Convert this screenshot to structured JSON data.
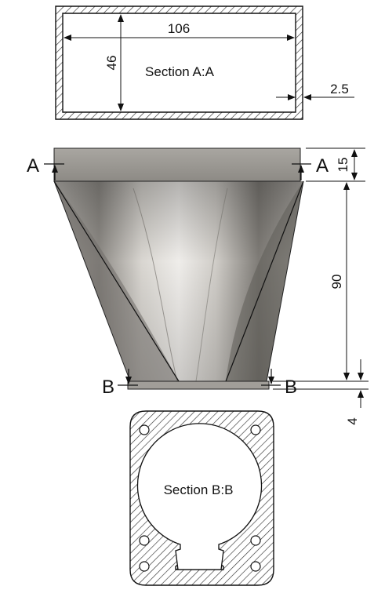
{
  "section_aa": {
    "title": "Section A:A",
    "width_dim": "106",
    "height_dim": "46",
    "wall_dim": "2.5"
  },
  "elevation": {
    "cut_a_label": "A",
    "cut_b_label": "B",
    "flange_height_dim": "15",
    "body_height_dim": "90",
    "base_plate_dim": "4"
  },
  "section_bb": {
    "title": "Section B:B"
  },
  "colors": {
    "line": "#111111",
    "hatch": "#444444",
    "funnel_light": "#d9d6d1",
    "funnel_mid": "#9a9690",
    "funnel_dark": "#55524e",
    "flange": "#9b9893"
  }
}
